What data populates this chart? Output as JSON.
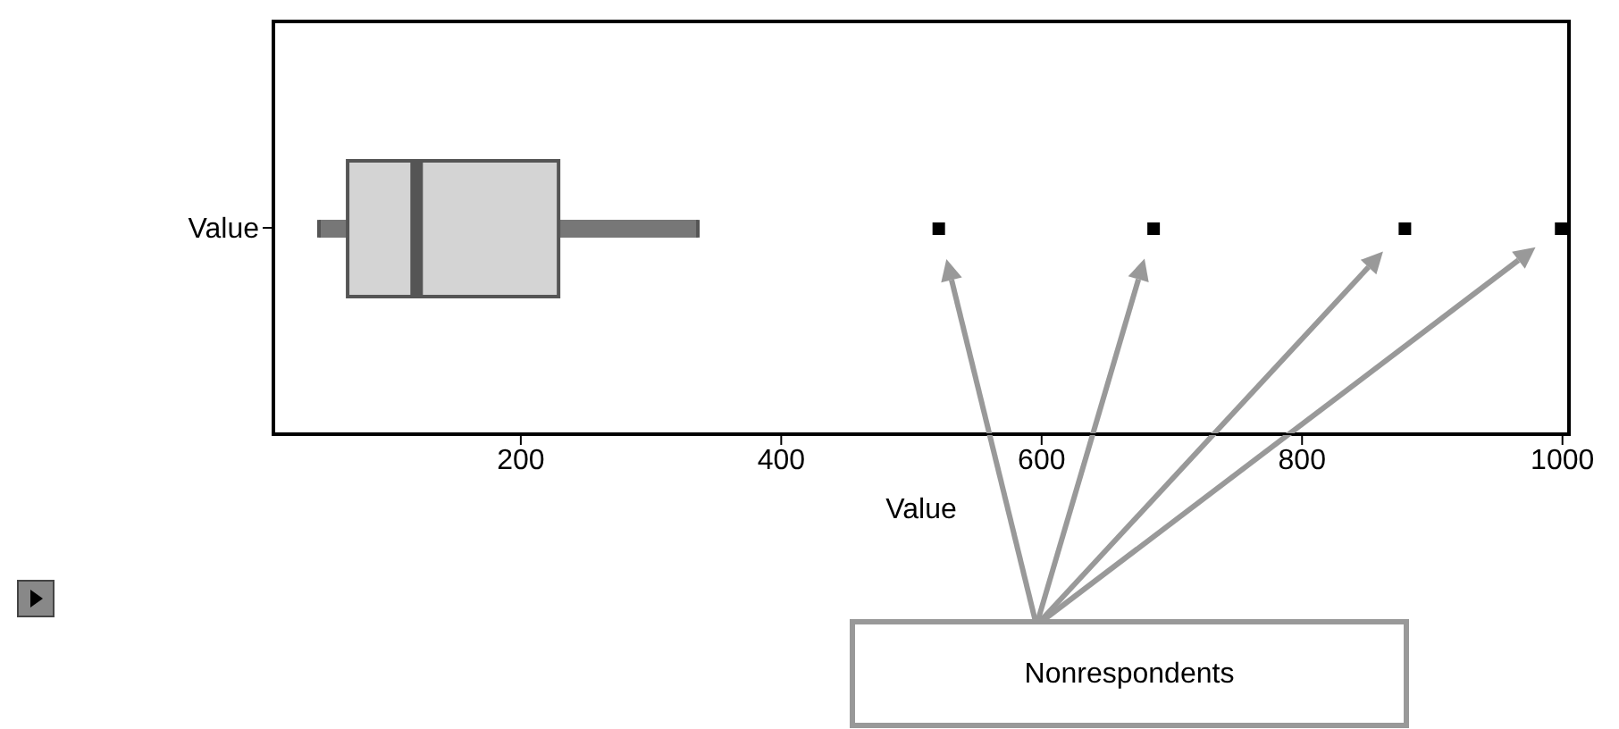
{
  "chart_data": {
    "type": "box",
    "orientation": "horizontal",
    "categories": [
      "Value"
    ],
    "xlabel": "Value",
    "boxes": [
      {
        "low": 45,
        "q1": 67,
        "median": 120,
        "q3": 229,
        "high": 336,
        "outliers": [
          521,
          686,
          879,
          999
        ]
      }
    ],
    "xlim": [
      10,
      1005
    ],
    "xticks": [
      200,
      400,
      600,
      800,
      1000
    ],
    "annotations": [
      "Nonrespondents"
    ]
  }
}
